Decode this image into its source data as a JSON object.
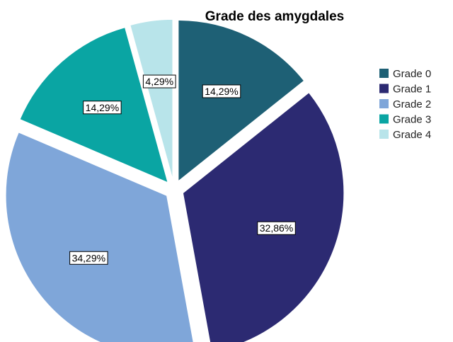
{
  "chart_data": {
    "type": "pie",
    "title": "Grade des amygdales",
    "legend_position": "right",
    "series": [
      {
        "name": "Grade 0",
        "value": 14.29,
        "label": "14,29%",
        "color": "#1e6075"
      },
      {
        "name": "Grade 1",
        "value": 32.86,
        "label": "32,86%",
        "color": "#2c2a72"
      },
      {
        "name": "Grade 2",
        "value": 34.29,
        "label": "34,29%",
        "color": "#7fa6d9"
      },
      {
        "name": "Grade 3",
        "value": 14.29,
        "label": "14,29%",
        "color": "#0aa5a3"
      },
      {
        "name": "Grade 4",
        "value": 4.29,
        "label": "4,29%",
        "color": "#b8e4ea"
      }
    ]
  }
}
